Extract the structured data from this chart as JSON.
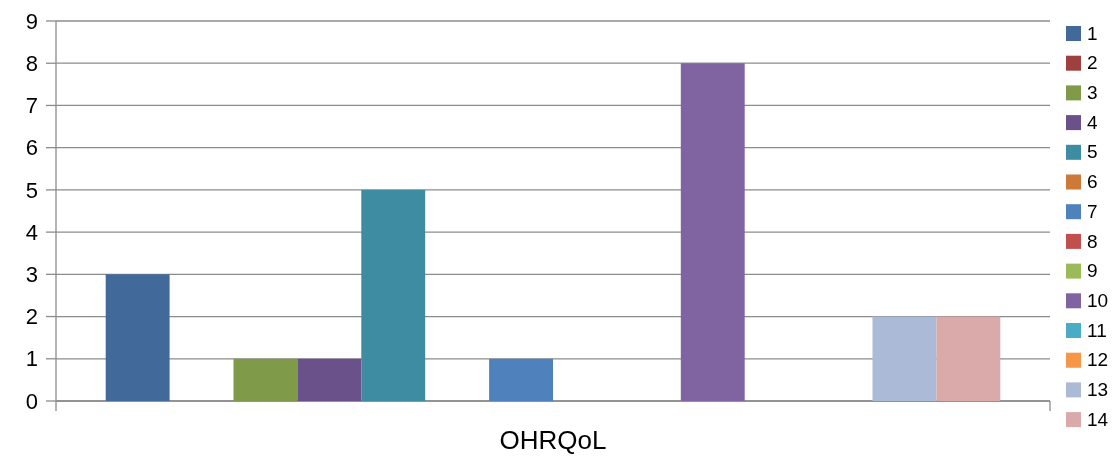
{
  "chart_data": {
    "type": "bar",
    "categories": [
      "OHRQoL"
    ],
    "series": [
      {
        "name": "1",
        "color": "#416a9b",
        "values": [
          3
        ]
      },
      {
        "name": "2",
        "color": "#9e413e",
        "values": [
          0
        ]
      },
      {
        "name": "3",
        "color": "#7f9a48",
        "values": [
          1
        ]
      },
      {
        "name": "4",
        "color": "#6a5189",
        "values": [
          1
        ]
      },
      {
        "name": "5",
        "color": "#3d8ca2",
        "values": [
          5
        ]
      },
      {
        "name": "6",
        "color": "#cd7a38",
        "values": [
          0
        ]
      },
      {
        "name": "7",
        "color": "#4f81bd",
        "values": [
          1
        ]
      },
      {
        "name": "8",
        "color": "#c0504d",
        "values": [
          0
        ]
      },
      {
        "name": "9",
        "color": "#9bbb59",
        "values": [
          0
        ]
      },
      {
        "name": "10",
        "color": "#8064a2",
        "values": [
          8
        ]
      },
      {
        "name": "11",
        "color": "#4bacc6",
        "values": [
          0
        ]
      },
      {
        "name": "12",
        "color": "#f79646",
        "values": [
          0
        ]
      },
      {
        "name": "13",
        "color": "#aabad7",
        "values": [
          2
        ]
      },
      {
        "name": "14",
        "color": "#d9aaa9",
        "values": [
          2
        ]
      }
    ],
    "ylim": [
      0,
      9
    ],
    "yticks": [
      0,
      1,
      2,
      3,
      4,
      5,
      6,
      7,
      8,
      9
    ],
    "grid": "y",
    "legend": "right"
  }
}
